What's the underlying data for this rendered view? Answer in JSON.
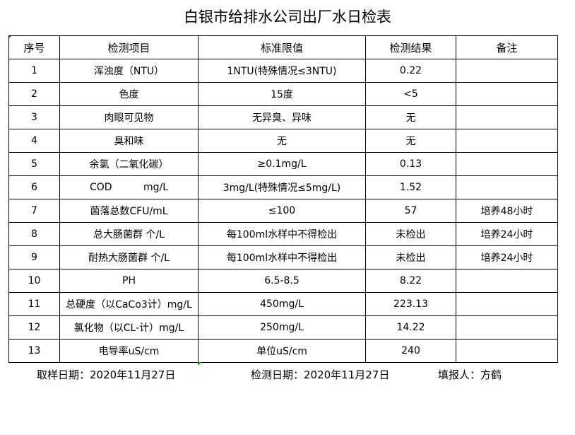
{
  "title": "白银市给排水公司出厂水日检表",
  "headers": [
    "序号",
    "检测项目",
    "标准限值",
    "检测结果",
    "备注"
  ],
  "rows": [
    [
      "1",
      "浑浊度（NTU）",
      "1NTU(特殊情况≤3NTU)",
      "0.22",
      ""
    ],
    [
      "2",
      "色度",
      "15度",
      "<5",
      ""
    ],
    [
      "3",
      "肉眼可见物",
      "无异臭、异味",
      "无",
      ""
    ],
    [
      "4",
      "臭和味",
      "无",
      "无",
      ""
    ],
    [
      "5",
      "余氯（二氧化碳）",
      "≥0.1mg/L",
      "0.13",
      ""
    ],
    [
      "6",
      "COD          mg/L",
      "3mg/L(特殊情况≤5mg/L)",
      "1.52",
      ""
    ],
    [
      "7",
      "菌落总数CFU/mL",
      "≤100",
      "57",
      "培养48小时"
    ],
    [
      "8",
      "总大肠菌群 个/L",
      "每100ml水样中不得检出",
      "未检出",
      "培养24小时"
    ],
    [
      "9",
      "耐热大肠菌群 个/L",
      "每100ml水样中不得检出",
      "未检出",
      "培养24小时"
    ],
    [
      "10",
      "PH",
      "6.5-8.5",
      "8.22",
      ""
    ],
    [
      "11",
      "总硬度（以CaCo3计）mg/L",
      "450mg/L",
      "223.13",
      ""
    ],
    [
      "12",
      "氯化物（以CL-计）mg/L",
      "250mg/L",
      "14.22",
      ""
    ],
    [
      "13",
      "电导率uS/cm",
      "单位uS/cm",
      "240",
      ""
    ]
  ],
  "footer": {
    "sample_date": "取样日期：2020年11月27日",
    "test_date": "检测日期：2020年11月27日",
    "reporter": "填报人：方鹤"
  }
}
